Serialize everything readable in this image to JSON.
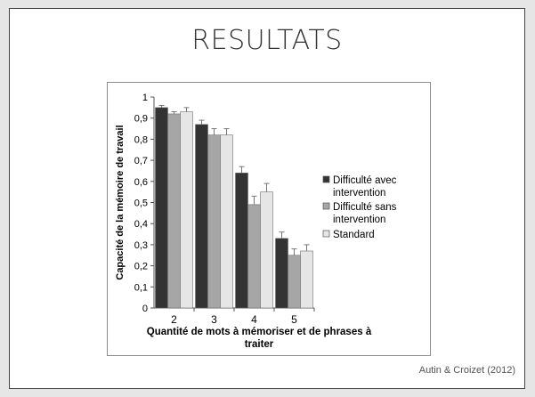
{
  "slide": {
    "title": "RESULTATS",
    "citation": "Autin & Croizet (2012)"
  },
  "chart_data": {
    "type": "bar",
    "categories": [
      "2",
      "3",
      "4",
      "5"
    ],
    "xlabel": "Quantité de mots à mémoriser et de phrases à traiter",
    "xlabel_lines": [
      "Quantité de mots à mémoriser et de phrases à",
      "traiter"
    ],
    "ylabel": "Capacité de la mémoire de travail",
    "ylim": [
      0,
      1
    ],
    "yticks": [
      "0",
      "0,1",
      "0,2",
      "0,3",
      "0,4",
      "0,5",
      "0,6",
      "0,7",
      "0,8",
      "0,9",
      "1"
    ],
    "grid": false,
    "legend_position": "right",
    "series": [
      {
        "name": "Difficulté avec intervention",
        "legend_lines": [
          "Difficulté avec",
          "intervention"
        ],
        "color": "#333333",
        "values": [
          0.95,
          0.87,
          0.64,
          0.33
        ],
        "errors": [
          0.01,
          0.02,
          0.03,
          0.03
        ]
      },
      {
        "name": "Difficulté sans intervention",
        "legend_lines": [
          "Difficulté sans",
          "intervention"
        ],
        "color": "#a6a6a6",
        "values": [
          0.92,
          0.82,
          0.49,
          0.25
        ],
        "errors": [
          0.01,
          0.03,
          0.04,
          0.03
        ]
      },
      {
        "name": "Standard",
        "legend_lines": [
          "Standard"
        ],
        "color": "#e6e6e6",
        "values": [
          0.93,
          0.82,
          0.55,
          0.27
        ],
        "errors": [
          0.02,
          0.03,
          0.04,
          0.03
        ]
      }
    ]
  }
}
